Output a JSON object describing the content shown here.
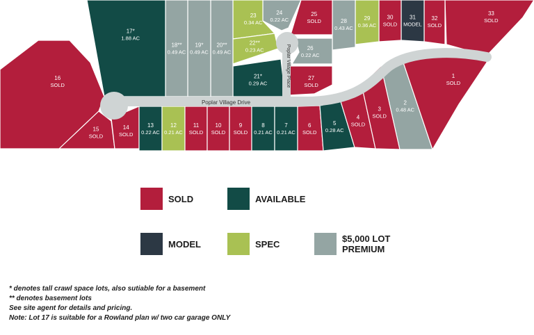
{
  "colors": {
    "sold": "#b31e3c",
    "available": "#124b46",
    "model": "#2c3844",
    "spec": "#a9c153",
    "premium": "#94a5a3",
    "road": "#cfd4d4"
  },
  "road": {
    "name": "Poplar Village Drive",
    "place": "Poplar Village Place"
  },
  "lots": [
    {
      "id": "1",
      "status": "sold",
      "l1": "1",
      "l2": "SOLD"
    },
    {
      "id": "2",
      "status": "premium",
      "l1": "2",
      "l2": "0.48 AC"
    },
    {
      "id": "3",
      "status": "sold",
      "l1": "3",
      "l2": "SOLD"
    },
    {
      "id": "4",
      "status": "sold",
      "l1": "4",
      "l2": "SOLD"
    },
    {
      "id": "5",
      "status": "available",
      "l1": "5",
      "l2": "0.28 AC"
    },
    {
      "id": "6",
      "status": "sold",
      "l1": "6",
      "l2": "SOLD"
    },
    {
      "id": "7",
      "status": "available",
      "l1": "7",
      "l2": "0.21 AC"
    },
    {
      "id": "8",
      "status": "available",
      "l1": "8",
      "l2": "0.21 AC"
    },
    {
      "id": "9",
      "status": "sold",
      "l1": "9",
      "l2": "SOLD"
    },
    {
      "id": "10",
      "status": "sold",
      "l1": "10",
      "l2": "SOLD"
    },
    {
      "id": "11",
      "status": "sold",
      "l1": "11",
      "l2": "SOLD"
    },
    {
      "id": "12",
      "status": "spec",
      "l1": "12",
      "l2": "0.21 AC"
    },
    {
      "id": "13",
      "status": "available",
      "l1": "13",
      "l2": "0.22 AC"
    },
    {
      "id": "14",
      "status": "sold",
      "l1": "14",
      "l2": "SOLD"
    },
    {
      "id": "15",
      "status": "sold",
      "l1": "15",
      "l2": "SOLD"
    },
    {
      "id": "16",
      "status": "sold",
      "l1": "16",
      "l2": "SOLD"
    },
    {
      "id": "17",
      "status": "available",
      "l1": "17*",
      "l2": "1.88 AC"
    },
    {
      "id": "18",
      "status": "premium",
      "l1": "18**",
      "l2": "0.49 AC"
    },
    {
      "id": "19",
      "status": "premium",
      "l1": "19*",
      "l2": "0.49 AC"
    },
    {
      "id": "20",
      "status": "premium",
      "l1": "20**",
      "l2": "0.49 AC"
    },
    {
      "id": "21",
      "status": "available",
      "l1": "21*",
      "l2": "0.29 AC"
    },
    {
      "id": "22",
      "status": "spec",
      "l1": "22**",
      "l2": "0.23 AC"
    },
    {
      "id": "23",
      "status": "spec",
      "l1": "23",
      "l2": "0.34 AC"
    },
    {
      "id": "24",
      "status": "premium",
      "l1": "24",
      "l2": "0.22 AC"
    },
    {
      "id": "25",
      "status": "sold",
      "l1": "25",
      "l2": "SOLD"
    },
    {
      "id": "26",
      "status": "premium",
      "l1": "26",
      "l2": "0.22 AC"
    },
    {
      "id": "27",
      "status": "sold",
      "l1": "27",
      "l2": "SOLD"
    },
    {
      "id": "28",
      "status": "premium",
      "l1": "28",
      "l2": "0.43 AC"
    },
    {
      "id": "29",
      "status": "spec",
      "l1": "29",
      "l2": "0.36 AC"
    },
    {
      "id": "30",
      "status": "sold",
      "l1": "30",
      "l2": "SOLD"
    },
    {
      "id": "31",
      "status": "model",
      "l1": "31",
      "l2": "MODEL"
    },
    {
      "id": "32",
      "status": "sold",
      "l1": "32",
      "l2": "SOLD"
    },
    {
      "id": "33",
      "status": "sold",
      "l1": "33",
      "l2": "SOLD"
    }
  ],
  "legend": {
    "sold": "SOLD",
    "available": "AVAILABLE",
    "model": "MODEL",
    "spec": "SPEC",
    "premium_line1": "$5,000 LOT",
    "premium_line2": "PREMIUM"
  },
  "notes": [
    "* denotes tall crawl space lots, also sutiable for a basement",
    "** denotes basement lots",
    "See site agent for details and pricing.",
    "Note: Lot 17 is suitable for a Rowland plan w/ two car garage ONLY"
  ]
}
